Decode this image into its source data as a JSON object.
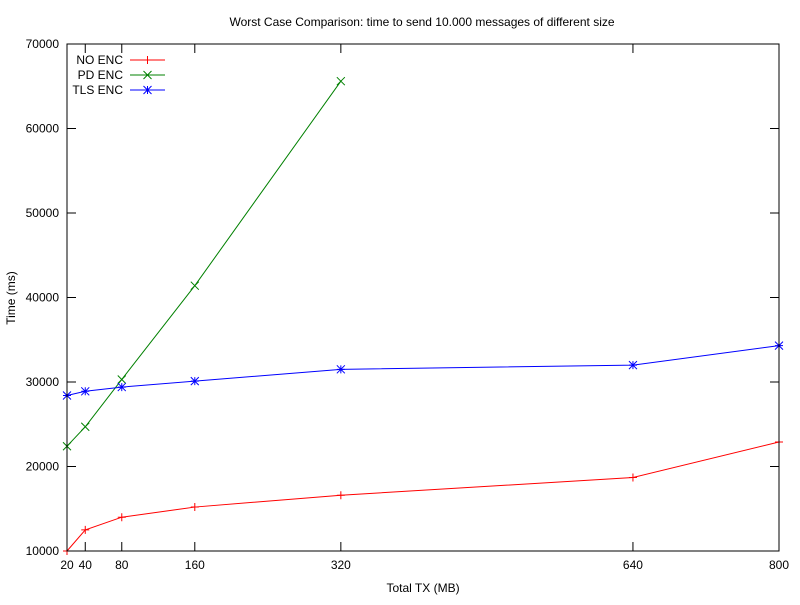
{
  "chart_data": {
    "type": "line",
    "title": "Worst Case Comparison: time to send 10.000 messages of different size",
    "xlabel": "Total TX (MB)",
    "ylabel": "Time (ms)",
    "xlim": [
      20,
      800
    ],
    "ylim": [
      10000,
      70000
    ],
    "x_ticks": [
      20,
      40,
      80,
      160,
      320,
      640,
      800
    ],
    "y_ticks": [
      10000,
      20000,
      30000,
      40000,
      50000,
      60000,
      70000
    ],
    "grid": false,
    "legend_placement": "top-left",
    "series": [
      {
        "name": "NO ENC",
        "color": "#ff0000",
        "marker": "plus",
        "x": [
          20,
          40,
          80,
          160,
          320,
          640,
          800
        ],
        "values": [
          10000,
          12500,
          14000,
          15200,
          16600,
          18700,
          22900
        ]
      },
      {
        "name": "PD ENC",
        "color": "#008000",
        "marker": "cross",
        "x": [
          20,
          40,
          80,
          160,
          320
        ],
        "values": [
          22400,
          24700,
          30300,
          41400,
          65600
        ]
      },
      {
        "name": "TLS ENC",
        "color": "#0000ff",
        "marker": "star",
        "x": [
          20,
          40,
          80,
          160,
          320,
          640,
          800
        ],
        "values": [
          28400,
          28900,
          29400,
          30100,
          31500,
          32000,
          34300
        ]
      }
    ]
  }
}
